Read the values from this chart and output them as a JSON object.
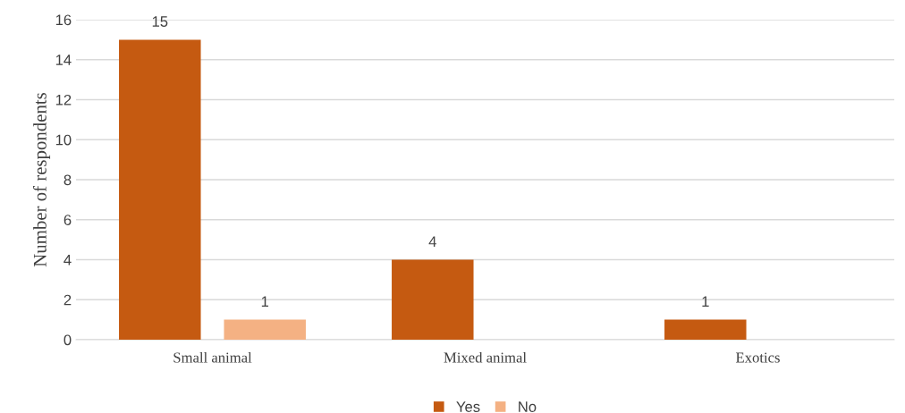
{
  "chart_data": {
    "type": "bar",
    "ylabel": "Number of respondents",
    "categories": [
      "Small animal",
      "Mixed animal",
      "Exotics"
    ],
    "series": [
      {
        "name": "Yes",
        "color": "#c55a11",
        "values": [
          15,
          4,
          1
        ],
        "value_labels": [
          "15",
          "4",
          "1"
        ]
      },
      {
        "name": "No",
        "color": "#f4b183",
        "values": [
          1,
          0,
          0
        ],
        "value_labels": [
          "1",
          null,
          null
        ]
      }
    ],
    "ylim": [
      0,
      16
    ],
    "yticks": [
      0,
      2,
      4,
      6,
      8,
      10,
      12,
      14,
      16
    ],
    "grid": "y",
    "legend": "bottom"
  }
}
